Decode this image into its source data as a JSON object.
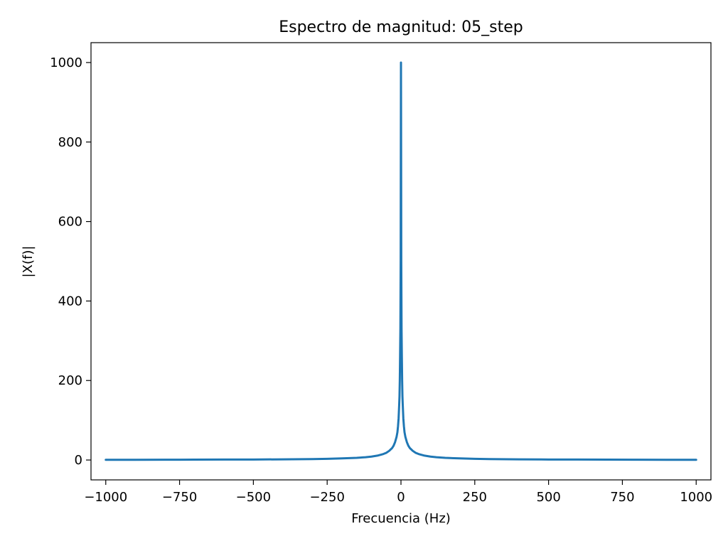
{
  "chart_data": {
    "type": "line",
    "title": "Espectro de magnitud: 05_step",
    "xlabel": "Frecuencia (Hz)",
    "ylabel": "|X(f)|",
    "xlim": [
      -1050,
      1050
    ],
    "ylim": [
      -50,
      1050
    ],
    "xticks": [
      -1000,
      -750,
      -500,
      -250,
      0,
      250,
      500,
      750,
      1000
    ],
    "xtick_labels": [
      "−1000",
      "−750",
      "−500",
      "−250",
      "0",
      "250",
      "500",
      "750",
      "1000"
    ],
    "yticks": [
      0,
      200,
      400,
      600,
      800,
      1000
    ],
    "ytick_labels": [
      "0",
      "200",
      "400",
      "600",
      "800",
      "1000"
    ],
    "grid": false,
    "series": [
      {
        "color": "#1f77b4",
        "x": [
          -1000,
          -900,
          -800,
          -700,
          -600,
          -500,
          -400,
          -300,
          -250,
          -200,
          -150,
          -120,
          -100,
          -80,
          -60,
          -50,
          -40,
          -30,
          -25,
          -20,
          -15,
          -12,
          -10,
          -8,
          -6,
          -5,
          -4,
          -3,
          -2,
          -1,
          0,
          1,
          2,
          3,
          4,
          5,
          6,
          8,
          10,
          12,
          15,
          20,
          25,
          30,
          40,
          50,
          60,
          80,
          100,
          120,
          150,
          200,
          250,
          300,
          400,
          500,
          600,
          700,
          800,
          900,
          1000
        ],
        "y": [
          0.5,
          0.6,
          0.7,
          0.9,
          1.1,
          1.3,
          1.7,
          2.4,
          3.0,
          4.0,
          5.5,
          7.0,
          8.5,
          11,
          15,
          18,
          23,
          30,
          36,
          45,
          58,
          70,
          85,
          105,
          140,
          160,
          200,
          260,
          330,
          500,
          1000,
          500,
          330,
          260,
          200,
          160,
          140,
          105,
          85,
          70,
          58,
          45,
          36,
          30,
          23,
          18,
          15,
          11,
          8.5,
          7.0,
          5.5,
          4.0,
          3.0,
          2.4,
          1.7,
          1.3,
          1.1,
          0.9,
          0.7,
          0.6,
          0.5
        ]
      }
    ]
  }
}
